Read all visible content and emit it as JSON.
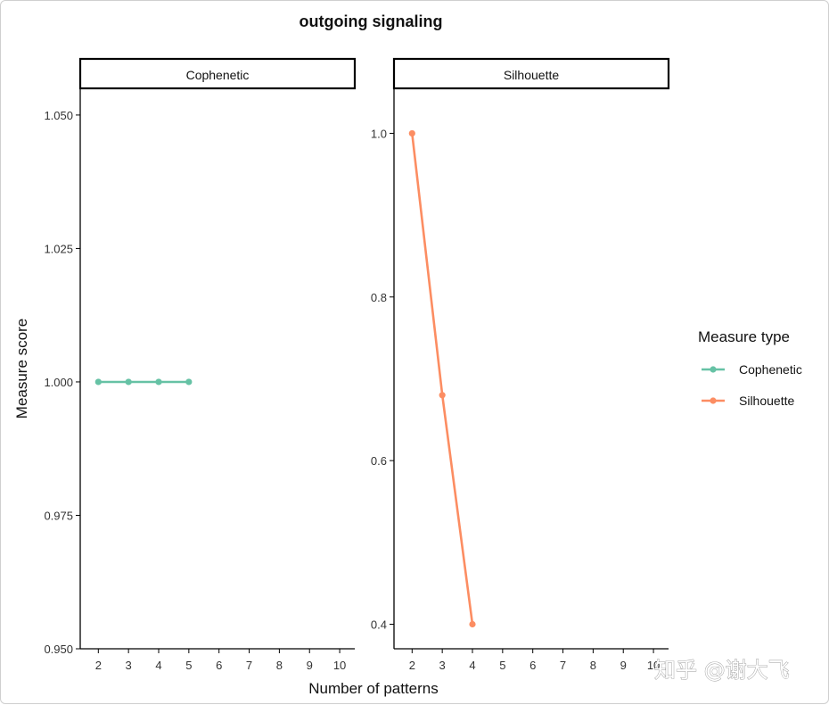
{
  "chart_data": {
    "type": "line",
    "title": "outgoing signaling",
    "xlabel": "Number of patterns",
    "ylabel": "Measure score",
    "x_ticks": [
      2,
      3,
      4,
      5,
      6,
      7,
      8,
      9,
      10
    ],
    "panels": [
      {
        "name": "Cophenetic",
        "ylim": [
          0.95,
          1.055
        ],
        "y_ticks": [
          "0.950",
          "0.975",
          "1.000",
          "1.025",
          "1.050"
        ],
        "y_tick_values": [
          0.95,
          0.975,
          1.0,
          1.025,
          1.05
        ],
        "series": [
          {
            "name": "Cophenetic",
            "color": "#66C2A5",
            "x": [
              2,
              3,
              4,
              5
            ],
            "values": [
              1.0,
              1.0,
              1.0,
              1.0
            ]
          }
        ]
      },
      {
        "name": "Silhouette",
        "ylim": [
          0.37,
          1.055
        ],
        "y_ticks": [
          "0.4",
          "0.6",
          "0.8",
          "1.0"
        ],
        "y_tick_values": [
          0.4,
          0.6,
          0.8,
          1.0
        ],
        "series": [
          {
            "name": "Silhouette",
            "color": "#FC8D62",
            "x": [
              2,
              3,
              4
            ],
            "values": [
              1.0,
              0.68,
              0.4
            ]
          }
        ]
      }
    ],
    "legend": {
      "title": "Measure type",
      "placement": "right",
      "entries": [
        {
          "name": "Cophenetic",
          "color": "#66C2A5"
        },
        {
          "name": "Silhouette",
          "color": "#FC8D62"
        }
      ]
    },
    "grid": false
  },
  "watermark": "知乎 @谢大飞"
}
